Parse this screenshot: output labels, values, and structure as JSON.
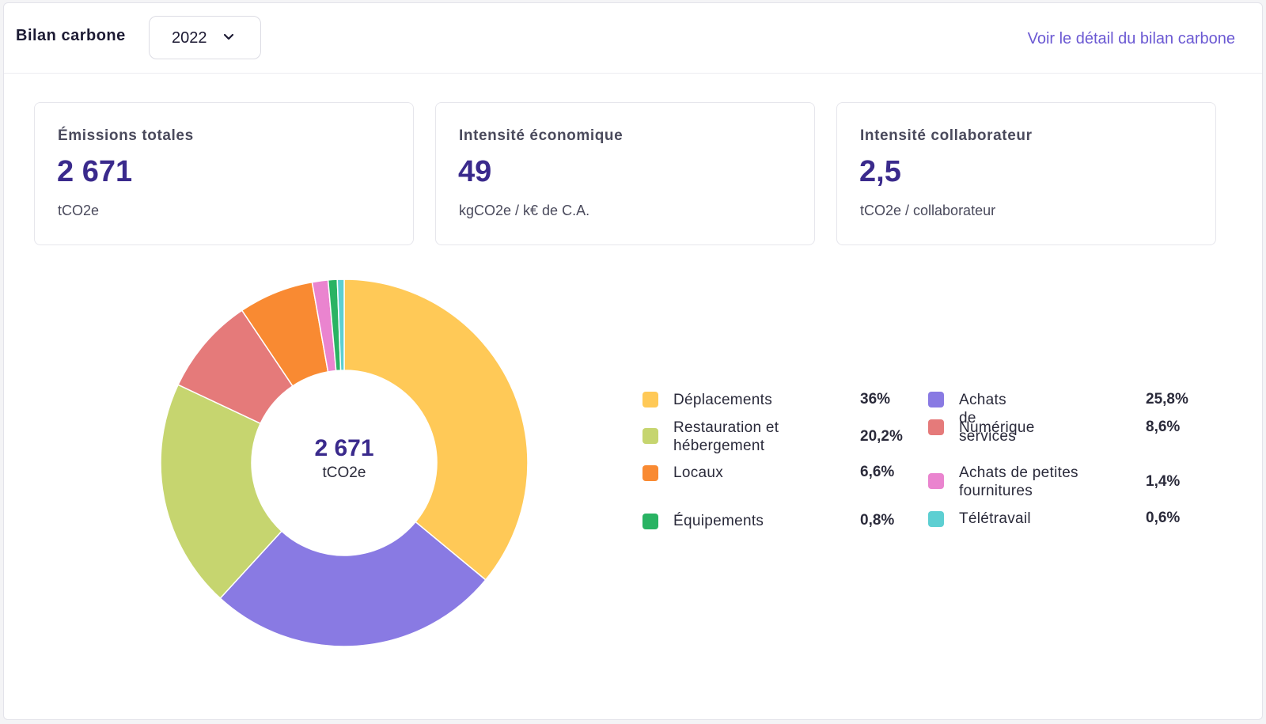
{
  "header": {
    "title": "Bilan carbone",
    "year_selected": "2022",
    "detail_link": "Voir le détail du bilan carbone"
  },
  "cards": [
    {
      "label": "Émissions totales",
      "value": "2 671",
      "unit": "tCO2e"
    },
    {
      "label": "Intensité économique",
      "value": "49",
      "unit": "kgCO2e / k€ de C.A."
    },
    {
      "label": "Intensité collaborateur",
      "value": "2,5",
      "unit": "tCO2e / collaborateur"
    }
  ],
  "donut_center": {
    "value": "2 671",
    "unit": "tCO2e"
  },
  "colors": {
    "accent": "#6b59d3",
    "value": "#3a2a8c"
  },
  "chart_data": {
    "type": "pie",
    "variant": "donut",
    "slices": [
      {
        "label": "Déplacements",
        "percent_label": "36%",
        "value": 36.0,
        "color": "#FFC957"
      },
      {
        "label": "Achats de services",
        "percent_label": "25,8%",
        "value": 25.8,
        "color": "#897AE3"
      },
      {
        "label": "Restauration et hébergement",
        "percent_label": "20,2%",
        "value": 20.2,
        "color": "#C6D56F"
      },
      {
        "label": "Numérique",
        "percent_label": "8,6%",
        "value": 8.6,
        "color": "#E57A7A"
      },
      {
        "label": "Locaux",
        "percent_label": "6,6%",
        "value": 6.6,
        "color": "#F98A32"
      },
      {
        "label": "Achats de petites fournitures",
        "percent_label": "1,4%",
        "value": 1.4,
        "color": "#EA84CF"
      },
      {
        "label": "Équipements",
        "percent_label": "0,8%",
        "value": 0.8,
        "color": "#29B363"
      },
      {
        "label": "Télétravail",
        "percent_label": "0,6%",
        "value": 0.6,
        "color": "#5DCFD2"
      }
    ]
  }
}
